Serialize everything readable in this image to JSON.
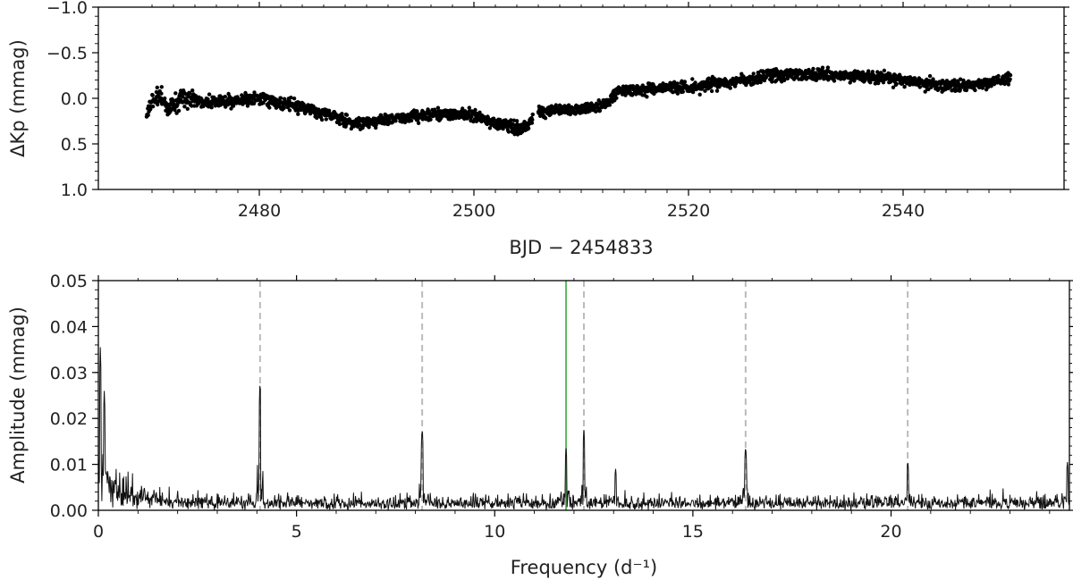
{
  "chart_data": [
    {
      "type": "scatter",
      "xlabel": "BJD − 2454833",
      "ylabel": "ΔKp (mmag)",
      "xlim": [
        2465,
        2555
      ],
      "ylim": [
        1.0,
        -1.0
      ],
      "y_inverted": true,
      "x_ticks": [
        2480,
        2500,
        2520,
        2540
      ],
      "x_tick_labels": [
        "2480",
        "2500",
        "2520",
        "2540"
      ],
      "y_ticks": [
        -1.0,
        -0.5,
        0.0,
        0.5,
        1.0
      ],
      "y_tick_labels": [
        "−1.0",
        "−0.5",
        "0.0",
        "0.5",
        "1.0"
      ],
      "marker_color": "#000000",
      "trend_points": [
        {
          "x": 2469.5,
          "y": 0.15
        },
        {
          "x": 2470.5,
          "y": -0.05
        },
        {
          "x": 2471.5,
          "y": 0.1
        },
        {
          "x": 2473,
          "y": 0.0
        },
        {
          "x": 2476,
          "y": 0.05
        },
        {
          "x": 2480,
          "y": 0.0
        },
        {
          "x": 2484,
          "y": 0.1
        },
        {
          "x": 2487,
          "y": 0.2
        },
        {
          "x": 2489,
          "y": 0.28
        },
        {
          "x": 2492,
          "y": 0.22
        },
        {
          "x": 2496,
          "y": 0.18
        },
        {
          "x": 2500,
          "y": 0.18
        },
        {
          "x": 2502,
          "y": 0.28
        },
        {
          "x": 2504,
          "y": 0.33
        },
        {
          "x": 2505,
          "y": 0.3
        },
        {
          "x": 2506,
          "y": 0.15
        },
        {
          "x": 2509,
          "y": 0.13
        },
        {
          "x": 2512,
          "y": 0.08
        },
        {
          "x": 2513.5,
          "y": -0.08
        },
        {
          "x": 2516,
          "y": -0.1
        },
        {
          "x": 2520,
          "y": -0.12
        },
        {
          "x": 2524,
          "y": -0.18
        },
        {
          "x": 2528,
          "y": -0.25
        },
        {
          "x": 2532,
          "y": -0.26
        },
        {
          "x": 2536,
          "y": -0.25
        },
        {
          "x": 2540,
          "y": -0.2
        },
        {
          "x": 2544,
          "y": -0.13
        },
        {
          "x": 2547,
          "y": -0.15
        },
        {
          "x": 2550,
          "y": -0.22
        }
      ]
    },
    {
      "type": "line",
      "xlabel": "Frequency (d⁻¹)",
      "ylabel": "Amplitude (mmag)",
      "xlim": [
        0,
        24.5
      ],
      "ylim": [
        0,
        0.05
      ],
      "x_ticks": [
        0,
        5,
        10,
        15,
        20
      ],
      "x_tick_labels": [
        "0",
        "5",
        "10",
        "15",
        "20"
      ],
      "y_ticks": [
        0.0,
        0.01,
        0.02,
        0.03,
        0.04,
        0.05
      ],
      "y_tick_labels": [
        "0.00",
        "0.01",
        "0.02",
        "0.03",
        "0.04",
        "0.05"
      ],
      "line_color": "#111111",
      "noise_level": 0.0025,
      "peaks": [
        {
          "x": 0.05,
          "y": 0.0355
        },
        {
          "x": 0.15,
          "y": 0.026
        },
        {
          "x": 4.08,
          "y": 0.0285
        },
        {
          "x": 8.17,
          "y": 0.018
        },
        {
          "x": 11.8,
          "y": 0.0135
        },
        {
          "x": 12.25,
          "y": 0.0175
        },
        {
          "x": 13.05,
          "y": 0.009
        },
        {
          "x": 16.33,
          "y": 0.014
        },
        {
          "x": 20.42,
          "y": 0.0108
        },
        {
          "x": 24.45,
          "y": 0.0105
        }
      ],
      "harmonic_lines": [
        4.08,
        8.17,
        12.25,
        16.33,
        20.42
      ],
      "harmonic_color": "#bbbbbb",
      "marker_line": 11.8,
      "marker_color": "#5cb85c"
    }
  ]
}
